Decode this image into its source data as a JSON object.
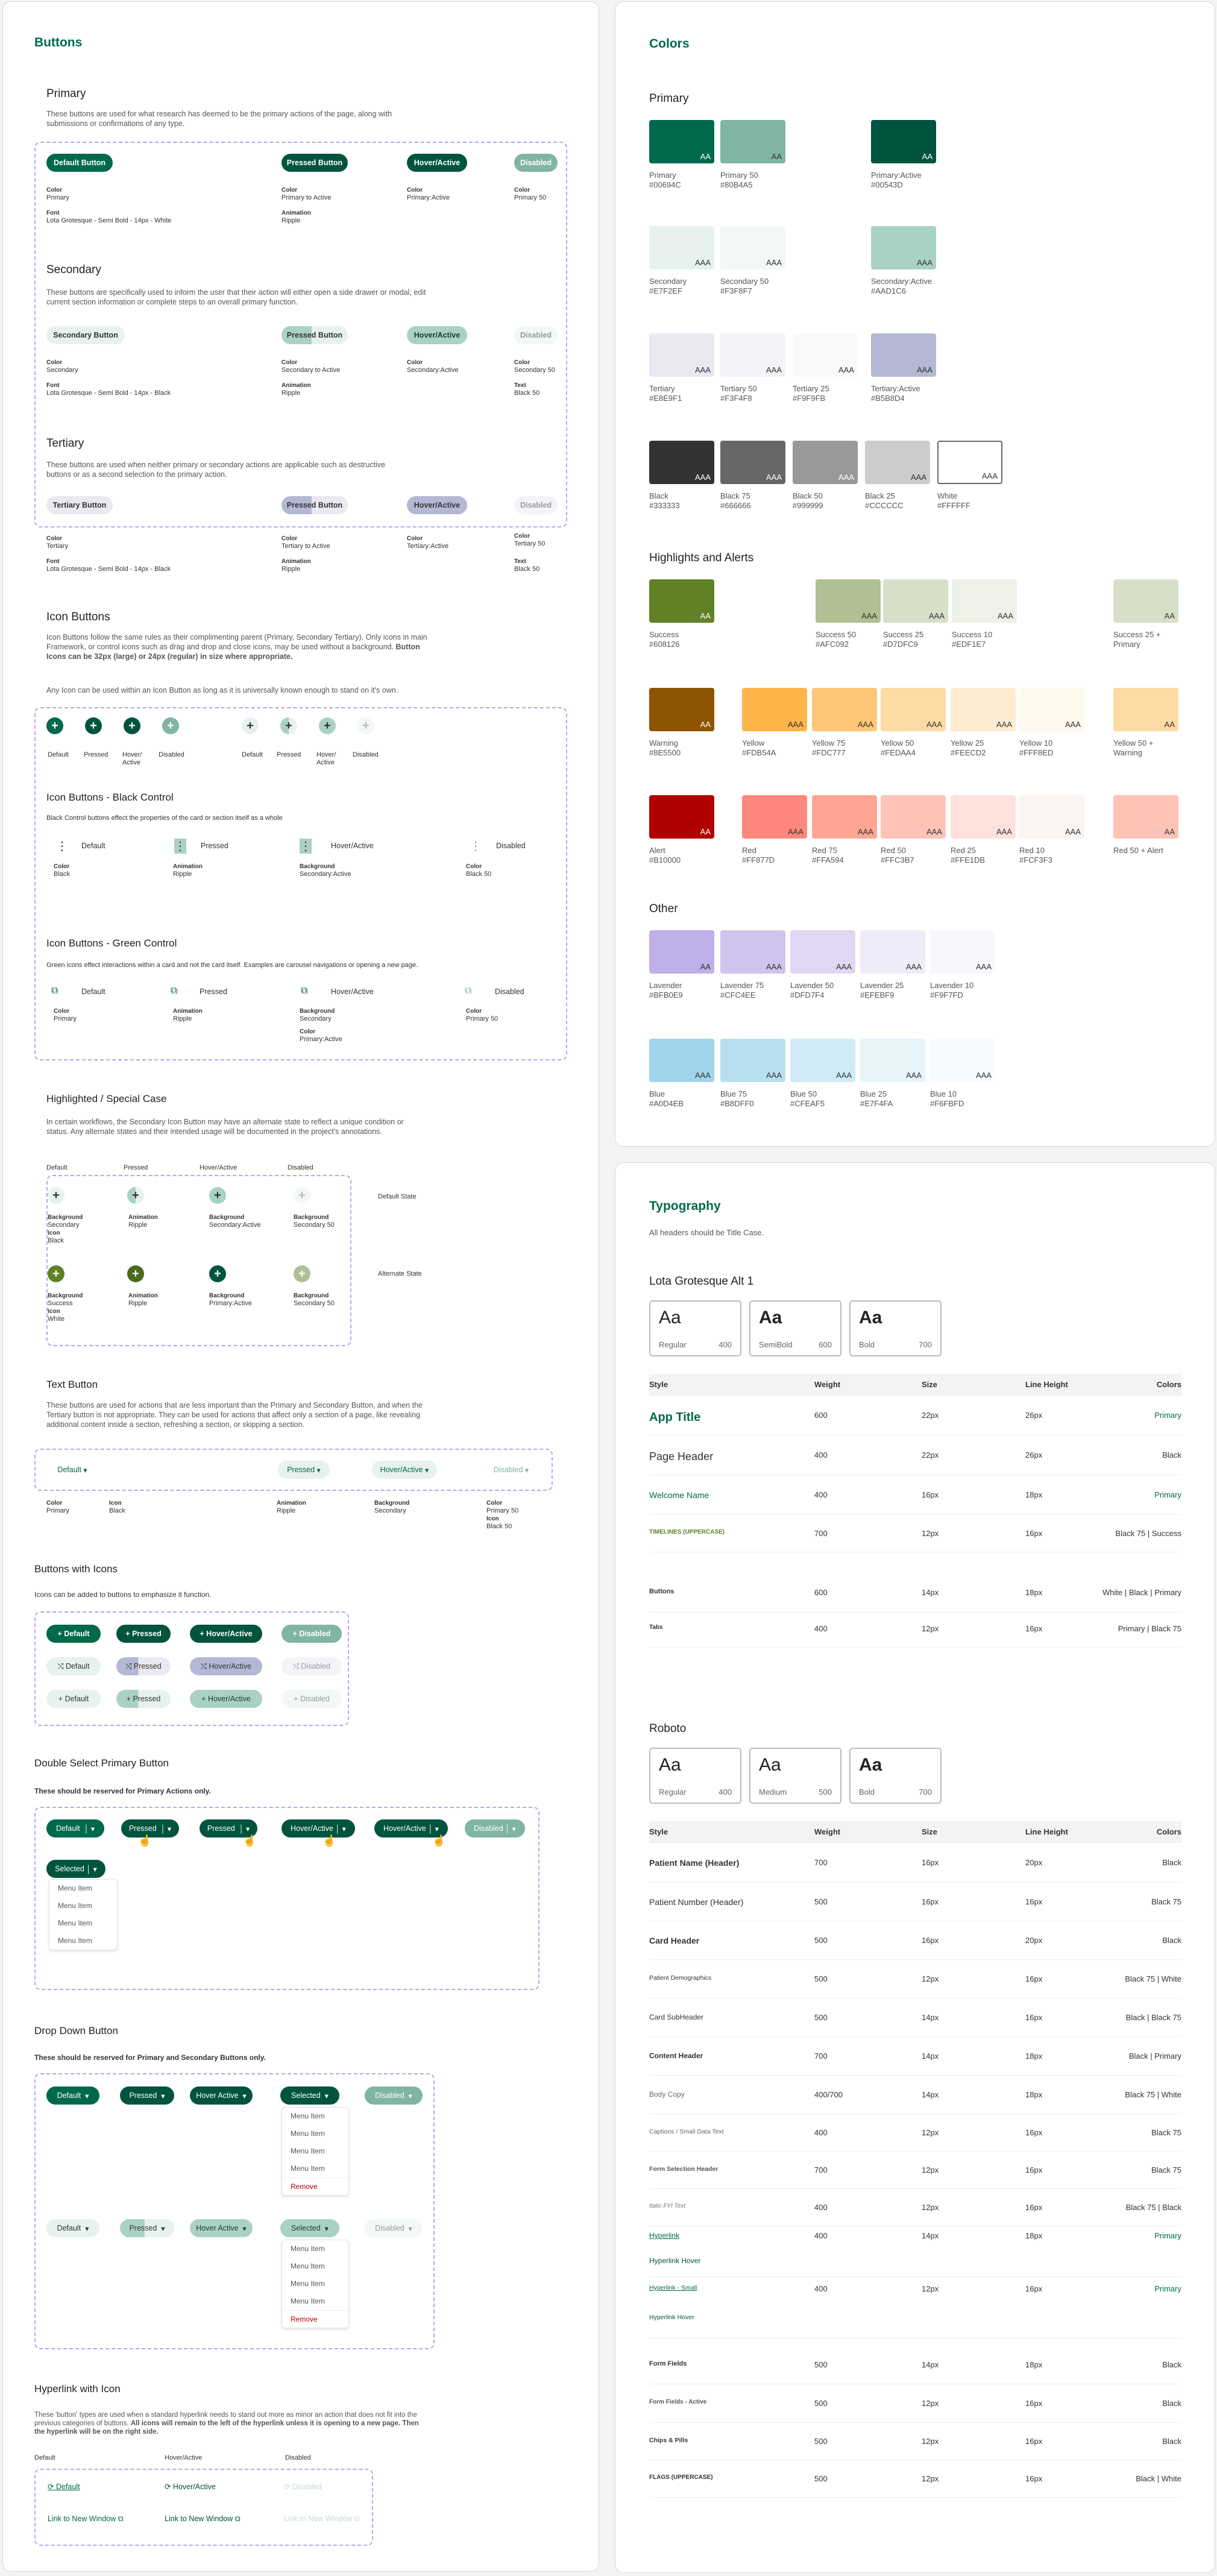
{
  "buttons_panel": {
    "title": "Buttons",
    "primary": {
      "heading": "Primary",
      "desc": "These buttons are used for what research has deemed to be the primary actions of the page, along with submissions or confirmations of any type.",
      "btn_default": "Default Button",
      "btn_pressed": "Pressed Button",
      "btn_hover": "Hover/Active",
      "btn_disabled": "Disabled",
      "color_lbl": "Color",
      "c1": "Primary",
      "c2": "Primary to Active",
      "c3": "Primary:Active",
      "c4": "Primary 50",
      "font_lbl": "Font",
      "font": "Lota Grotesque - Semi Bold - 14px - White",
      "anim_lbl": "Animation",
      "anim": "Ripple"
    },
    "secondary": {
      "heading": "Secondary",
      "desc": "These buttons are specifically used to inform the user that their action will either open a side drawer or modal, edit current section information or complete steps to an overall primary function.",
      "btn_default": "Secondary Button",
      "btn_pressed": "Pressed Button",
      "btn_hover": "Hover/Active",
      "btn_disabled": "Disabled",
      "color_lbl": "Color",
      "c1": "Secondary",
      "c2": "Secondary to Active",
      "c3": "Secondary:Active",
      "c4": "Secondary 50",
      "font_lbl": "Font",
      "font": "Lota Grotesque - Semi Bold - 14px - Black",
      "anim_lbl": "Animation",
      "anim": "Ripple",
      "text_lbl": "Text",
      "text": "Black 50"
    },
    "tertiary": {
      "heading": "Tertiary",
      "desc": "These buttons are used when neither primary or secondary actions are applicable such as destructive buttons or as a second selection to the primary action.",
      "btn_default": "Tertiary Button",
      "btn_pressed": "Pressed Button",
      "btn_hover": "Hover/Active",
      "btn_disabled": "Disabled",
      "color_lbl": "Color",
      "c1": "Tertiary",
      "c2": "Tertiary to Active",
      "c3": "Tertiary:Active",
      "c4": "Tertiary 50",
      "font_lbl": "Font",
      "font": "Lota Grotesque - Semi Bold - 14px - Black",
      "anim_lbl": "Animation",
      "anim": "Ripple",
      "text_lbl": "Text",
      "text": "Black 50"
    },
    "icon_buttons": {
      "heading": "Icon Buttons",
      "desc1": "Icon Buttons follow the same rules as their complimenting parent (Primary, Secondary Tertiary). Only icons in main Framework, or control icons such as drag and drop and close icons, may be used without a background.",
      "desc1b": "Button Icons can be 32px (large) or 24px (regular) in size where appropriate.",
      "desc2": "Any Icon can be used within an Icon Button as long as it is universally known enough to stand on it's own.",
      "l_default": "Default",
      "l_pressed": "Pressed",
      "l_hover": "Hover/ Active",
      "l_disabled": "Disabled"
    },
    "black_control": {
      "heading": "Icon Buttons - Black Control",
      "desc": "Black Control buttons effect the properties of the card or section itself as a whole",
      "default": "Default",
      "pressed": "Pressed",
      "hover": "Hover/Active",
      "disabled": "Disabled",
      "color_lbl": "Color",
      "c1": "Black",
      "anim_lbl": "Animation",
      "anim": "Ripple",
      "bg_lbl": "Background",
      "bg": "Secondary:Active",
      "c4": "Black 50"
    },
    "green_control": {
      "heading": "Icon Buttons - Green Control",
      "desc": "Green icons effect interactions within a card and not the card itself.  Examples are carousel navigations or opening a new page.",
      "default": "Default",
      "pressed": "Pressed",
      "hover": "Hover/Active",
      "disabled": "Disabled",
      "color_lbl": "Color",
      "c1": "Primary",
      "anim_lbl": "Animation",
      "anim": "Ripple",
      "bg_lbl": "Background",
      "bg": "Secondary",
      "c3b": "Primary:Active",
      "c4": "Primary 50"
    },
    "highlighted": {
      "heading": "Highlighted / Special Case",
      "desc": "In certain workflows, the Secondary Icon Button may have an alternate state to reflect a unique condition or status. Any alternate states and their intended usage will be documented in the project's annotations.",
      "l_default": "Default",
      "l_pressed": "Pressed",
      "l_hover": "Hover/Active",
      "l_disabled": "Disabled",
      "default_state": "Default State",
      "alternate_state": "Alternate State",
      "bg_lbl": "Background",
      "icon_lbl": "Icon",
      "anim_lbl": "Animation",
      "anim": "Ripple",
      "r1c1": "Secondary",
      "r1i": "Black",
      "r1c3": "Secondary:Active",
      "r1c4": "Secondary 50",
      "r2c1": "Success",
      "r2i": "White",
      "r2c3": "Primary:Active",
      "r2c4": "Secondary 50"
    },
    "text_button": {
      "heading": "Text Button",
      "desc": "These buttons are used for actions that are less important than the Primary and Secondary Button, and when the Tertiary button is not appropriate. They can be used for actions that affect only a section of a page, like revealing additional content inside a section, refreshing a section, or skipping a section.",
      "default": "Default",
      "pressed": "Pressed",
      "hover": "Hover/Active",
      "disabled": "Disabled",
      "color_lbl": "Color",
      "c1": "Primary",
      "icon_lbl": "Icon",
      "icon": "Black",
      "anim_lbl": "Animation",
      "anim": "Ripple",
      "bg_lbl": "Background",
      "bg": "Secondary",
      "c4": "Primary 50",
      "icon4": "Black 50"
    },
    "with_icons": {
      "heading": "Buttons with Icons",
      "desc": "Icons can be added to buttons to emphasize it function.",
      "default": "Default",
      "pressed": "Pressed",
      "hover": "Hover/Active",
      "disabled": "Disabled"
    },
    "double_select": {
      "heading": "Double Select Primary Button",
      "desc": "These should be reserved for Primary Actions only.",
      "default": "Default",
      "pressed": "Pressed",
      "hover": "Hover/Active",
      "disabled": "Disabled",
      "selected": "Selected",
      "menu": [
        "Menu Item",
        "Menu Item",
        "Menu Item",
        "Menu Item"
      ]
    },
    "dropdown": {
      "heading": "Drop Down Button",
      "desc": "These should be reserved for Primary and Secondary Buttons only.",
      "default": "Default",
      "pressed": "Pressed",
      "hover": "Hover Active",
      "disabled": "Disabled",
      "selected": "Selected",
      "menu": [
        "Menu Item",
        "Menu Item",
        "Menu Item",
        "Menu Item"
      ],
      "remove": "Remove"
    },
    "hyperlink": {
      "heading": "Hyperlink with Icon",
      "desc": "These 'button' types are used when a standard hyperlink needs to stand out more as minor  an action that does not fit into the previous categories of buttons. ",
      "desc_b": "All icons will remain to the left of the hyperlink unless it is opening to a new page.  Then the hyperlink will be on the right side.",
      "l_default": "Default",
      "l_hover": "Hover/Active",
      "l_disabled": "Disabled",
      "link_default": "Default",
      "link_hover": "Hover/Active",
      "link_disabled": "Disabled",
      "new_window": "Link to New Window"
    }
  },
  "colors_panel": {
    "title": "Colors",
    "primary_heading": "Primary",
    "highlights_heading": "Highlights and Alerts",
    "other_heading": "Other",
    "swatches": [
      {
        "bg": "#00694c",
        "txt": "AA",
        "tc": "#fff",
        "name": "Primary",
        "hex": "#00694C"
      },
      {
        "bg": "#80b4a5",
        "txt": "AA",
        "tc": "#333",
        "name": "Primary 50",
        "hex": "#80B4A5"
      },
      {
        "bg": "#00543d",
        "txt": "AA",
        "tc": "#fff",
        "name": "Primary:Active",
        "hex": "#00543D"
      },
      {
        "bg": "#e7f2ef",
        "txt": "AAA",
        "tc": "#333",
        "name": "Secondary",
        "hex": "#E7F2EF"
      },
      {
        "bg": "#f3f8f7",
        "txt": "AAA",
        "tc": "#333",
        "name": "Secondary 50",
        "hex": "#F3F8F7"
      },
      {
        "bg": "#aad1c6",
        "txt": "AAA",
        "tc": "#333",
        "name": "Secondary:Active",
        "hex": "#AAD1C6"
      },
      {
        "bg": "#e8e9f1",
        "txt": "AAA",
        "tc": "#333",
        "name": "Tertiary",
        "hex": "#E8E9F1"
      },
      {
        "bg": "#f3f4f8",
        "txt": "AAA",
        "tc": "#333",
        "name": "Tertiary 50",
        "hex": "#F3F4F8"
      },
      {
        "bg": "#f9f9fb",
        "txt": "AAA",
        "tc": "#333",
        "name": "Tertiary 25",
        "hex": "#F9F9FB"
      },
      {
        "bg": "#b5b8d4",
        "txt": "AAA",
        "tc": "#333",
        "name": "Tertiary:Active",
        "hex": "#B5B8D4"
      },
      {
        "bg": "#333333",
        "txt": "AAA",
        "tc": "#fff",
        "name": "Black",
        "hex": "#333333"
      },
      {
        "bg": "#666666",
        "txt": "AAA",
        "tc": "#fff",
        "name": "Black 75",
        "hex": "#666666"
      },
      {
        "bg": "#999999",
        "txt": "AAA",
        "tc": "#fff",
        "name": "Black 50",
        "hex": "#999999"
      },
      {
        "bg": "#cccccc",
        "txt": "AAA",
        "tc": "#333",
        "name": "Black 25",
        "hex": "#CCCCCC"
      },
      {
        "bg": "#ffffff",
        "txt": "AAA",
        "tc": "#333",
        "name": "White",
        "hex": "#FFFFFF"
      },
      {
        "bg": "#608126",
        "txt": "AA",
        "tc": "#fff",
        "name": "Success",
        "hex": "#608126"
      },
      {
        "bg": "#afc092",
        "txt": "AAA",
        "tc": "#333",
        "name": "Success 50",
        "hex": "#AFC092"
      },
      {
        "bg": "#d7dfc9",
        "txt": "AAA",
        "tc": "#333",
        "name": "Success 25",
        "hex": "#D7DFC9"
      },
      {
        "bg": "#edf1e7",
        "txt": "AAA",
        "tc": "#333",
        "name": "Success 10",
        "hex": "#EDF1E7"
      },
      {
        "bg": "#d7dfc9",
        "txt": "AA",
        "tc": "#333",
        "name": "Success 25 +",
        "hex": "Primary"
      },
      {
        "bg": "#8e5500",
        "txt": "AA",
        "tc": "#fff",
        "name": "Warning",
        "hex": "#8E5500"
      },
      {
        "bg": "#fdb54a",
        "txt": "AAA",
        "tc": "#333",
        "name": "Yellow",
        "hex": "#FDB54A"
      },
      {
        "bg": "#fdc777",
        "txt": "AAA",
        "tc": "#333",
        "name": "Yellow 75",
        "hex": "#FDC777"
      },
      {
        "bg": "#fedaa4",
        "txt": "AAA",
        "tc": "#333",
        "name": "Yellow 50",
        "hex": "#FEDAA4"
      },
      {
        "bg": "#feecd2",
        "txt": "AAA",
        "tc": "#333",
        "name": "Yellow 25",
        "hex": "#FEECD2"
      },
      {
        "bg": "#fff8ed",
        "txt": "AAA",
        "tc": "#333",
        "name": "Yellow 10",
        "hex": "#FFF8ED"
      },
      {
        "bg": "#fedaa4",
        "txt": "AA",
        "tc": "#333",
        "name": "Yellow 50 +",
        "hex": "Warning"
      },
      {
        "bg": "#b10000",
        "txt": "AA",
        "tc": "#fff",
        "name": "Alert",
        "hex": "#B10000"
      },
      {
        "bg": "#ff877d",
        "txt": "AAA",
        "tc": "#333",
        "name": "Red",
        "hex": "#FF877D"
      },
      {
        "bg": "#ffa594",
        "txt": "AAA",
        "tc": "#333",
        "name": "Red 75",
        "hex": "#FFA594"
      },
      {
        "bg": "#ffc3b7",
        "txt": "AAA",
        "tc": "#333",
        "name": "Red 50",
        "hex": "#FFC3B7"
      },
      {
        "bg": "#ffe1db",
        "txt": "AAA",
        "tc": "#333",
        "name": "Red 25",
        "hex": "#FFE1DB"
      },
      {
        "bg": "#fcf3f3",
        "txt": "AAA",
        "tc": "#333",
        "name": "Red 10",
        "hex": "#FCF3F3"
      },
      {
        "bg": "#ffc3b7",
        "txt": "AA",
        "tc": "#333",
        "name": "Red 50 + Alert",
        "hex": ""
      },
      {
        "bg": "#bfb0e9",
        "txt": "AA",
        "tc": "#333",
        "name": "Lavender",
        "hex": "#BFB0E9"
      },
      {
        "bg": "#cfc4ee",
        "txt": "AAA",
        "tc": "#333",
        "name": "Lavender 75",
        "hex": "#CFC4EE"
      },
      {
        "bg": "#dfd7f4",
        "txt": "AAA",
        "tc": "#333",
        "name": "Lavender 50",
        "hex": "#DFD7F4"
      },
      {
        "bg": "#efebf9",
        "txt": "AAA",
        "tc": "#333",
        "name": "Lavender 25",
        "hex": "#EFEBF9"
      },
      {
        "bg": "#f9f7fd",
        "txt": "AAA",
        "tc": "#333",
        "name": "Lavender 10",
        "hex": "#F9F7FD"
      },
      {
        "bg": "#a0d4eb",
        "txt": "AAA",
        "tc": "#333",
        "name": "Blue",
        "hex": "#A0D4EB"
      },
      {
        "bg": "#b8dff0",
        "txt": "AAA",
        "tc": "#333",
        "name": "Blue 75",
        "hex": "#B8DFF0"
      },
      {
        "bg": "#cfeaf5",
        "txt": "AAA",
        "tc": "#333",
        "name": "Blue 50",
        "hex": "#CFEAF5"
      },
      {
        "bg": "#e7f4fa",
        "txt": "AAA",
        "tc": "#333",
        "name": "Blue 25",
        "hex": "#E7F4FA"
      },
      {
        "bg": "#f6fbfd",
        "txt": "AAA",
        "tc": "#333",
        "name": "Blue 10",
        "hex": "#F6FBFD"
      }
    ]
  },
  "typography_panel": {
    "title": "Typography",
    "desc": "All headers should be Title Case.",
    "lota": {
      "heading": "Lota Grotesque Alt 1",
      "boxes": [
        {
          "name": "Regular",
          "w": "400"
        },
        {
          "name": "SemiBold",
          "w": "600"
        },
        {
          "name": "Bold",
          "w": "700"
        }
      ],
      "cols": [
        "Style",
        "Weight",
        "Size",
        "Line Height",
        "Colors"
      ],
      "rows": [
        [
          "App Title",
          "600",
          "22px",
          "26px",
          "Primary"
        ],
        [
          "Page Header",
          "400",
          "22px",
          "26px",
          "Black"
        ],
        [
          "Welcome Name",
          "400",
          "16px",
          "18px",
          "Primary"
        ],
        [
          "TIMELINES (UPPERCASE)",
          "700",
          "12px",
          "16px",
          "Black 75 | Success"
        ],
        [
          "Buttons",
          "600",
          "14px",
          "18px",
          "White | Black | Primary"
        ],
        [
          "Tabs",
          "400",
          "12px",
          "16px",
          "Primary | Black 75"
        ]
      ]
    },
    "roboto": {
      "heading": "Roboto",
      "boxes": [
        {
          "name": "Regular",
          "w": "400"
        },
        {
          "name": "Medium",
          "w": "500"
        },
        {
          "name": "Bold",
          "w": "700"
        }
      ],
      "cols": [
        "Style",
        "Weight",
        "Size",
        "Line Height",
        "Colors"
      ],
      "rows": [
        [
          "Patient Name (Header)",
          "700",
          "16px",
          "20px",
          "Black"
        ],
        [
          "Patient Number (Header)",
          "500",
          "16px",
          "16px",
          "Black 75"
        ],
        [
          "Card Header",
          "500",
          "16px",
          "20px",
          "Black"
        ],
        [
          "Patient Demographics",
          "500",
          "12px",
          "16px",
          "Black 75 | White"
        ],
        [
          "Card SubHeader",
          "500",
          "14px",
          "16px",
          "Black | Black 75"
        ],
        [
          "Content Header",
          "700",
          "14px",
          "18px",
          "Black | Primary"
        ],
        [
          "Body Copy",
          "400/700",
          "14px",
          "18px",
          "Black 75 | White"
        ],
        [
          "Captions / Small Data Text",
          "400",
          "12px",
          "16px",
          "Black 75"
        ],
        [
          "Form Selection Header",
          "700",
          "12px",
          "16px",
          "Black 75"
        ],
        [
          "Italic FYI Text",
          "400",
          "12px",
          "16px",
          "Black 75 | Black"
        ],
        [
          "Hyperlink",
          "400",
          "14px",
          "18px",
          "Primary"
        ],
        [
          "Hyperlink Hover",
          "",
          "",
          "",
          ""
        ],
        [
          "Hyperlink - Small",
          "400",
          "12px",
          "16px",
          "Primary"
        ],
        [
          "Hyperlink Hover",
          "",
          "",
          "",
          ""
        ],
        [
          "Form Fields",
          "500",
          "14px",
          "18px",
          "Black"
        ],
        [
          "Form Fields - Active",
          "500",
          "12px",
          "16px",
          "Black"
        ],
        [
          "Chips & Pills",
          "500",
          "12px",
          "16px",
          "Black"
        ],
        [
          "FLAGS (UPPERCASE)",
          "500",
          "12px",
          "16px",
          "Black | White"
        ]
      ]
    }
  }
}
